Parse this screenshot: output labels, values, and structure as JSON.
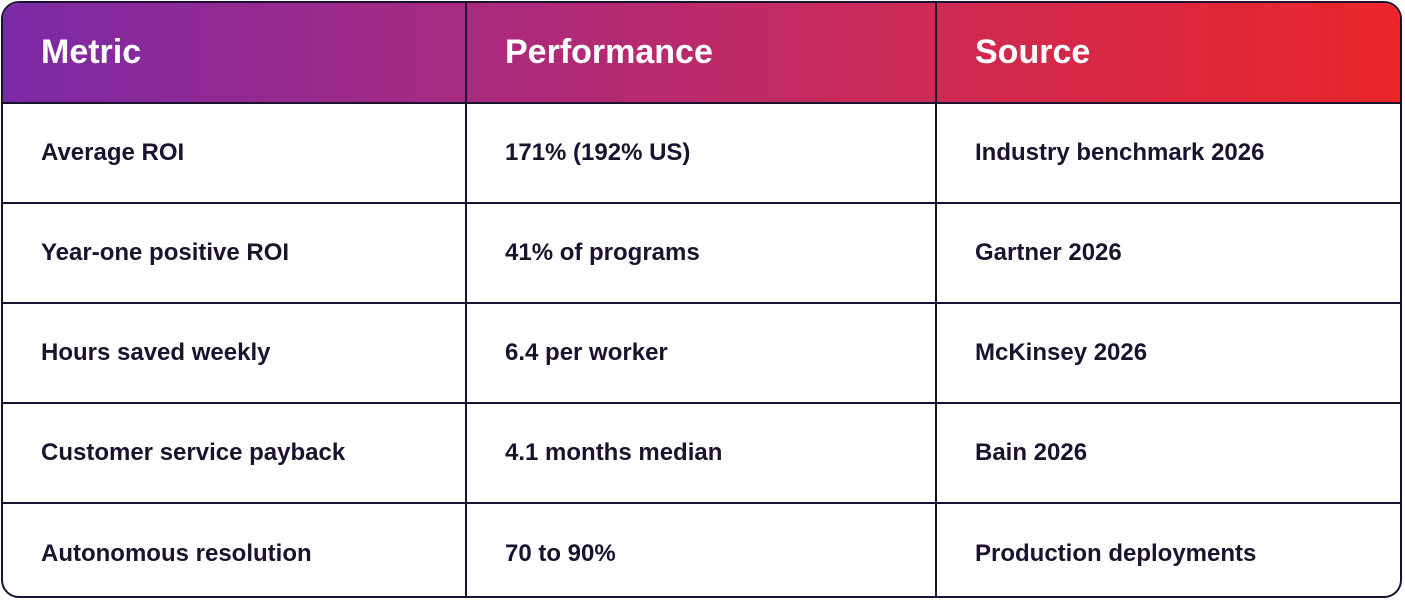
{
  "table": {
    "headers": [
      "Metric",
      "Performance",
      "Source"
    ],
    "rows": [
      {
        "metric": "Average ROI",
        "performance": "171% (192% US)",
        "source": "Industry benchmark 2026"
      },
      {
        "metric": "Year-one positive ROI",
        "performance": "41% of programs",
        "source": "Gartner 2026"
      },
      {
        "metric": "Hours saved weekly",
        "performance": "6.4 per worker",
        "source": "McKinsey 2026"
      },
      {
        "metric": "Customer service payback",
        "performance": "4.1 months median",
        "source": "Bain 2026"
      },
      {
        "metric": "Autonomous resolution",
        "performance": "70 to 90%",
        "source": "Production deployments"
      }
    ]
  },
  "colors": {
    "header_gradient_start": "#7b2aa6",
    "header_gradient_end": "#ea2629",
    "text": "#1b1230",
    "border": "#1b1230"
  }
}
